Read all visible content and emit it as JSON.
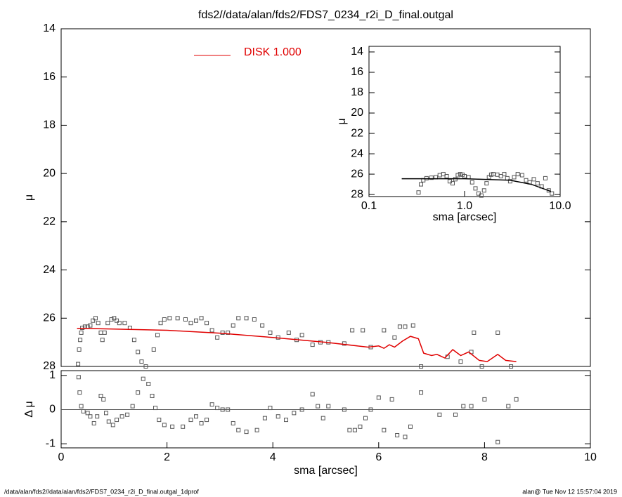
{
  "chart_data": [
    {
      "type": "scatter",
      "title": "fds2//data/alan/fds2/FDS7_0234_r2i_D_final.outgal",
      "ylabel": "μ",
      "xlim": [
        0,
        10
      ],
      "ylim": [
        14,
        28
      ],
      "yticks": [
        14,
        16,
        18,
        20,
        22,
        24,
        26,
        28
      ],
      "legend": "top",
      "series": [
        {
          "type": "scatter",
          "color": "#555555",
          "x": [
            0.32,
            0.34,
            0.36,
            0.38,
            0.4,
            0.45,
            0.5,
            0.55,
            0.6,
            0.65,
            0.7,
            0.75,
            0.78,
            0.82,
            0.88,
            0.95,
            1.0,
            1.05,
            1.1,
            1.2,
            1.3,
            1.38,
            1.45,
            1.52,
            1.6,
            1.75,
            1.82,
            1.88,
            1.95,
            2.05,
            2.2,
            2.35,
            2.45,
            2.55,
            2.65,
            2.75,
            2.85,
            2.95,
            3.05,
            3.15,
            3.25,
            3.35,
            3.5,
            3.65,
            3.8,
            3.95,
            4.1,
            4.3,
            4.45,
            4.55,
            4.75,
            4.9,
            5.05,
            5.35,
            5.5,
            5.7,
            5.85,
            6.1,
            6.3,
            6.4,
            6.5,
            6.65,
            6.8,
            7.3,
            7.55,
            7.75,
            7.8,
            7.95,
            8.25,
            8.5
          ],
          "values": [
            27.9,
            27.3,
            26.9,
            26.6,
            26.4,
            26.35,
            26.35,
            26.3,
            26.1,
            26.0,
            26.2,
            26.6,
            26.9,
            26.6,
            26.2,
            26.05,
            26.0,
            26.1,
            26.2,
            26.2,
            26.4,
            26.9,
            27.4,
            27.8,
            28.0,
            27.3,
            26.7,
            26.2,
            26.05,
            26.0,
            26.0,
            26.05,
            26.2,
            26.1,
            26.0,
            26.2,
            26.5,
            26.8,
            26.6,
            26.6,
            26.3,
            26.0,
            26.0,
            26.05,
            26.3,
            26.6,
            26.8,
            26.6,
            26.9,
            26.7,
            27.1,
            27.0,
            27.0,
            27.05,
            26.5,
            26.5,
            27.2,
            26.5,
            26.8,
            26.35,
            26.35,
            26.3,
            28.0,
            27.6,
            27.8,
            27.4,
            26.6,
            28.0,
            26.6,
            28.0
          ]
        },
        {
          "type": "line",
          "name": "DISK  1.000",
          "color": "#e00000",
          "x": [
            0.3,
            1,
            2,
            3,
            4,
            5,
            5.8,
            6,
            6.1,
            6.2,
            6.3,
            6.45,
            6.6,
            6.75,
            6.85,
            7.0,
            7.1,
            7.25,
            7.4,
            7.55,
            7.7,
            7.9,
            8.05,
            8.25,
            8.4,
            8.6
          ],
          "values": [
            26.42,
            26.45,
            26.5,
            26.62,
            26.8,
            27.0,
            27.2,
            27.15,
            27.25,
            27.1,
            27.2,
            26.95,
            26.75,
            26.85,
            27.45,
            27.55,
            27.5,
            27.65,
            27.3,
            27.55,
            27.4,
            27.75,
            27.8,
            27.5,
            27.75,
            27.8
          ]
        }
      ]
    },
    {
      "type": "scatter",
      "ylabel": "Δ μ",
      "xlabel": "sma [arcsec]",
      "xlim": [
        0,
        10
      ],
      "xticks": [
        0,
        2,
        4,
        6,
        8,
        10
      ],
      "ylim": [
        -1.12,
        1.14
      ],
      "yticks": [
        -1,
        0,
        1
      ],
      "hline": 0,
      "series": [
        {
          "type": "scatter",
          "color": "#555555",
          "x": [
            0.33,
            0.35,
            0.38,
            0.42,
            0.5,
            0.55,
            0.62,
            0.68,
            0.75,
            0.8,
            0.85,
            0.9,
            0.98,
            1.05,
            1.15,
            1.25,
            1.35,
            1.45,
            1.55,
            1.65,
            1.72,
            1.78,
            1.85,
            1.95,
            2.1,
            2.3,
            2.45,
            2.55,
            2.65,
            2.75,
            2.85,
            2.95,
            3.05,
            3.15,
            3.25,
            3.35,
            3.5,
            3.7,
            3.85,
            3.95,
            4.1,
            4.25,
            4.4,
            4.55,
            4.75,
            4.85,
            4.95,
            5.05,
            5.35,
            5.45,
            5.55,
            5.65,
            5.75,
            5.85,
            6.0,
            6.1,
            6.25,
            6.35,
            6.5,
            6.6,
            6.8,
            7.15,
            7.45,
            7.6,
            7.75,
            8.0,
            8.25,
            8.45,
            8.6
          ],
          "values": [
            0.95,
            0.5,
            0.1,
            -0.05,
            -0.1,
            -0.2,
            -0.4,
            -0.2,
            0.4,
            0.3,
            -0.1,
            -0.35,
            -0.45,
            -0.3,
            -0.2,
            -0.15,
            0.1,
            0.5,
            0.9,
            0.75,
            0.4,
            0.05,
            -0.3,
            -0.45,
            -0.5,
            -0.5,
            -0.3,
            -0.2,
            -0.4,
            -0.3,
            0.15,
            0.05,
            0.0,
            0.0,
            -0.4,
            -0.6,
            -0.65,
            -0.6,
            -0.25,
            0.05,
            -0.2,
            -0.3,
            -0.1,
            0.0,
            0.45,
            0.1,
            -0.25,
            0.1,
            0.0,
            -0.6,
            -0.6,
            -0.5,
            -0.25,
            0.0,
            0.35,
            -0.6,
            0.3,
            -0.75,
            -0.8,
            -0.5,
            0.5,
            -0.15,
            -0.15,
            0.1,
            0.1,
            0.3,
            -0.95,
            0.1,
            0.3
          ]
        }
      ]
    },
    {
      "type": "scatter",
      "ylabel": "μ",
      "xlabel": "sma [arcsec]",
      "xlog": true,
      "xlim": [
        0.1,
        10
      ],
      "xticks": [
        0.1,
        {
          "value": 1,
          "label": "1.0"
        },
        {
          "value": 10,
          "label": "10.0"
        }
      ],
      "ylim": [
        13.45,
        28.2
      ],
      "yticks": [
        14,
        16,
        18,
        20,
        22,
        24,
        26,
        28
      ],
      "series": [
        {
          "type": "scatter",
          "color": "#555555",
          "x": [
            0.33,
            0.35,
            0.37,
            0.4,
            0.45,
            0.5,
            0.55,
            0.6,
            0.65,
            0.7,
            0.75,
            0.8,
            0.85,
            0.9,
            0.95,
            1.0,
            1.1,
            1.2,
            1.3,
            1.4,
            1.5,
            1.6,
            1.7,
            1.8,
            1.9,
            2.0,
            2.2,
            2.4,
            2.6,
            2.8,
            3.0,
            3.3,
            3.6,
            4.0,
            4.4,
            4.8,
            5.3,
            5.8,
            6.4,
            7.0,
            7.6,
            8.2
          ],
          "values": [
            27.8,
            27.0,
            26.6,
            26.4,
            26.35,
            26.3,
            26.1,
            26.0,
            26.2,
            26.7,
            26.9,
            26.5,
            26.1,
            26.0,
            26.05,
            26.2,
            26.3,
            26.8,
            27.4,
            27.9,
            28.1,
            27.6,
            26.9,
            26.3,
            26.05,
            26.0,
            26.05,
            26.2,
            26.0,
            26.4,
            26.7,
            26.3,
            26.0,
            26.1,
            26.6,
            26.8,
            26.5,
            26.9,
            27.2,
            26.4,
            27.6,
            27.9
          ]
        },
        {
          "type": "line",
          "color": "#000000",
          "x": [
            0.22,
            1,
            3,
            5,
            8
          ],
          "values": [
            26.45,
            26.45,
            26.6,
            27.0,
            27.7
          ]
        }
      ]
    }
  ],
  "footer": {
    "left": "/data/alan/fds2//data/alan/fds2/FDS7_0234_r2i_D_final.outgal_1dprof",
    "right": "alan@  Tue Nov 12 15:57:04 2019"
  }
}
